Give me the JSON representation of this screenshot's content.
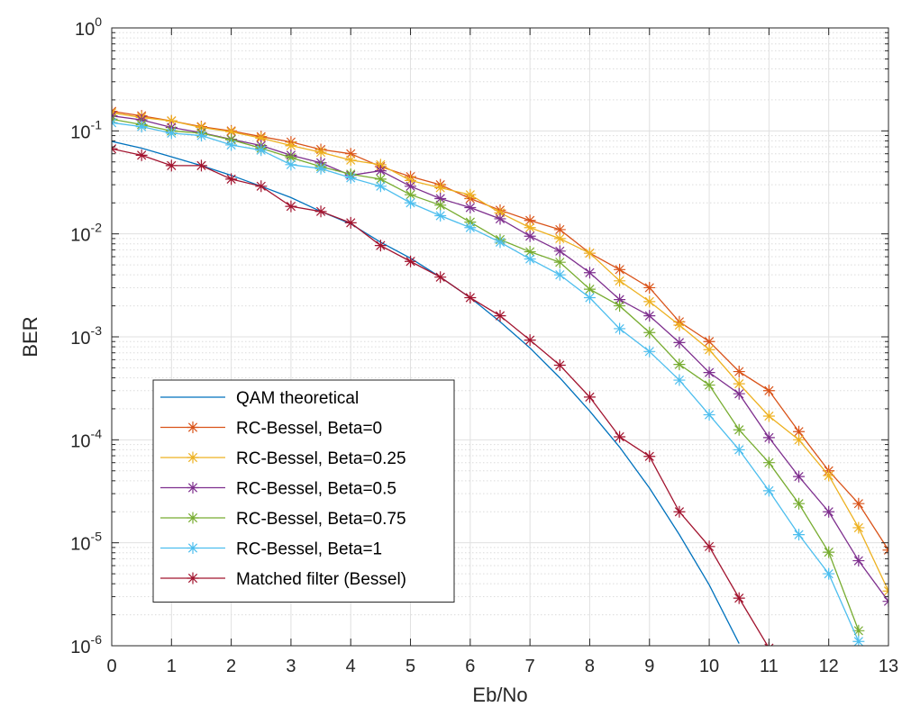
{
  "chart_data": {
    "type": "line",
    "xlabel": "Eb/No",
    "ylabel": "BER",
    "xlim": [
      0,
      13
    ],
    "ylim": [
      1e-06,
      1
    ],
    "yscale": "log",
    "grid": true,
    "minor_grid": true,
    "legend_position": "lower-left",
    "x_ticks": [
      "0",
      "1",
      "2",
      "3",
      "4",
      "5",
      "6",
      "7",
      "8",
      "9",
      "10",
      "11",
      "12",
      "13"
    ],
    "y_ticks": [
      {
        "base": "10",
        "exp": "0",
        "value": 1
      },
      {
        "base": "10",
        "exp": "-1",
        "value": 0.1
      },
      {
        "base": "10",
        "exp": "-2",
        "value": 0.01
      },
      {
        "base": "10",
        "exp": "-3",
        "value": 0.001
      },
      {
        "base": "10",
        "exp": "-4",
        "value": 0.0001
      },
      {
        "base": "10",
        "exp": "-5",
        "value": 1e-05
      },
      {
        "base": "10",
        "exp": "-6",
        "value": 1e-06
      }
    ],
    "series": [
      {
        "name": "QAM theoretical",
        "color": "#0072BD",
        "marker": "none",
        "x": [
          0,
          0.5,
          1,
          1.5,
          2,
          2.5,
          3,
          3.5,
          4,
          4.5,
          5,
          5.5,
          6,
          6.5,
          7,
          7.5,
          8,
          8.5,
          9,
          9.5,
          10,
          10.5
        ],
        "y": [
          0.079,
          0.068,
          0.056,
          0.046,
          0.037,
          0.029,
          0.0225,
          0.0165,
          0.0125,
          0.0083,
          0.0058,
          0.0038,
          0.0024,
          0.0014,
          0.00078,
          0.0004,
          0.00019,
          8.5e-05,
          3.4e-05,
          1.2e-05,
          3.9e-06,
          1.05e-06
        ]
      },
      {
        "name": "RC-Bessel, Beta=0",
        "color": "#D95319",
        "marker": "star",
        "x": [
          0,
          0.5,
          1,
          1.5,
          2,
          2.5,
          3,
          3.5,
          4,
          4.5,
          5,
          5.5,
          6,
          6.5,
          7,
          7.5,
          8,
          8.5,
          9,
          9.5,
          10,
          10.5,
          11,
          11.5,
          12,
          12.5,
          13
        ],
        "y": [
          0.155,
          0.14,
          0.125,
          0.11,
          0.1,
          0.088,
          0.078,
          0.066,
          0.06,
          0.045,
          0.036,
          0.03,
          0.022,
          0.017,
          0.0135,
          0.011,
          0.0065,
          0.0045,
          0.003,
          0.0014,
          0.0009,
          0.00046,
          0.0003,
          0.00012,
          5e-05,
          2.4e-05,
          8.5e-06
        ]
      },
      {
        "name": "RC-Bessel, Beta=0.25",
        "color": "#EDB120",
        "marker": "star",
        "x": [
          0,
          0.5,
          1,
          1.5,
          2,
          2.5,
          3,
          3.5,
          4,
          4.5,
          5,
          5.5,
          6,
          6.5,
          7,
          7.5,
          8,
          8.5,
          9,
          9.5,
          10,
          10.5,
          11,
          11.5,
          12,
          12.5,
          13
        ],
        "y": [
          0.15,
          0.135,
          0.125,
          0.108,
          0.098,
          0.085,
          0.072,
          0.062,
          0.052,
          0.047,
          0.033,
          0.028,
          0.024,
          0.016,
          0.0115,
          0.009,
          0.0065,
          0.0035,
          0.0022,
          0.0013,
          0.00075,
          0.00035,
          0.00017,
          0.0001,
          4.5e-05,
          1.4e-05,
          3.4e-06
        ]
      },
      {
        "name": "RC-Bessel, Beta=0.5",
        "color": "#7E2F8E",
        "marker": "star",
        "x": [
          0,
          0.5,
          1,
          1.5,
          2,
          2.5,
          3,
          3.5,
          4,
          4.5,
          5,
          5.5,
          6,
          6.5,
          7,
          7.5,
          8,
          8.5,
          9,
          9.5,
          10,
          10.5,
          11,
          11.5,
          12,
          12.5,
          13
        ],
        "y": [
          0.14,
          0.128,
          0.108,
          0.096,
          0.083,
          0.072,
          0.058,
          0.049,
          0.037,
          0.041,
          0.029,
          0.022,
          0.018,
          0.014,
          0.0095,
          0.0068,
          0.0042,
          0.0023,
          0.0016,
          0.00088,
          0.00045,
          0.00028,
          0.000105,
          4.4e-05,
          2e-05,
          6.7e-06,
          2.7e-06
        ]
      },
      {
        "name": "RC-Bessel, Beta=0.75",
        "color": "#77AC30",
        "marker": "star",
        "x": [
          0,
          0.5,
          1,
          1.5,
          2,
          2.5,
          3,
          3.5,
          4,
          4.5,
          5,
          5.5,
          6,
          6.5,
          7,
          7.5,
          8,
          8.5,
          9,
          9.5,
          10,
          10.5,
          11,
          11.5,
          12,
          12.5
        ],
        "y": [
          0.13,
          0.115,
          0.1,
          0.095,
          0.082,
          0.068,
          0.055,
          0.045,
          0.038,
          0.034,
          0.024,
          0.019,
          0.013,
          0.0088,
          0.0067,
          0.0053,
          0.0029,
          0.002,
          0.0011,
          0.00054,
          0.00034,
          0.000125,
          6e-05,
          2.4e-05,
          8.1e-06,
          1.4e-06
        ]
      },
      {
        "name": "RC-Bessel, Beta=1",
        "color": "#4DBEEE",
        "marker": "star",
        "x": [
          0,
          0.5,
          1,
          1.5,
          2,
          2.5,
          3,
          3.5,
          4,
          4.5,
          5,
          5.5,
          6,
          6.5,
          7,
          7.5,
          8,
          8.5,
          9,
          9.5,
          10,
          10.5,
          11,
          11.5,
          12,
          12.5
        ],
        "y": [
          0.12,
          0.11,
          0.095,
          0.09,
          0.073,
          0.065,
          0.047,
          0.043,
          0.035,
          0.029,
          0.02,
          0.015,
          0.0115,
          0.0083,
          0.0057,
          0.004,
          0.0024,
          0.0012,
          0.00072,
          0.00038,
          0.000175,
          8e-05,
          3.2e-05,
          1.2e-05,
          5e-06,
          1.1e-06
        ]
      },
      {
        "name": "Matched filter (Bessel)",
        "color": "#A2142F",
        "marker": "star",
        "x": [
          0,
          0.5,
          1,
          1.5,
          2,
          2.5,
          3,
          3.5,
          4,
          4.5,
          5,
          5.5,
          6,
          6.5,
          7,
          7.5,
          8,
          8.5,
          9,
          9.5,
          10,
          10.5,
          11
        ],
        "y": [
          0.067,
          0.058,
          0.046,
          0.046,
          0.034,
          0.029,
          0.0185,
          0.0165,
          0.0128,
          0.0077,
          0.0054,
          0.0038,
          0.0024,
          0.0016,
          0.00093,
          0.00053,
          0.00026,
          0.000107,
          6.9e-05,
          2e-05,
          9.2e-06,
          2.9e-06,
          9.5e-07
        ]
      }
    ]
  }
}
